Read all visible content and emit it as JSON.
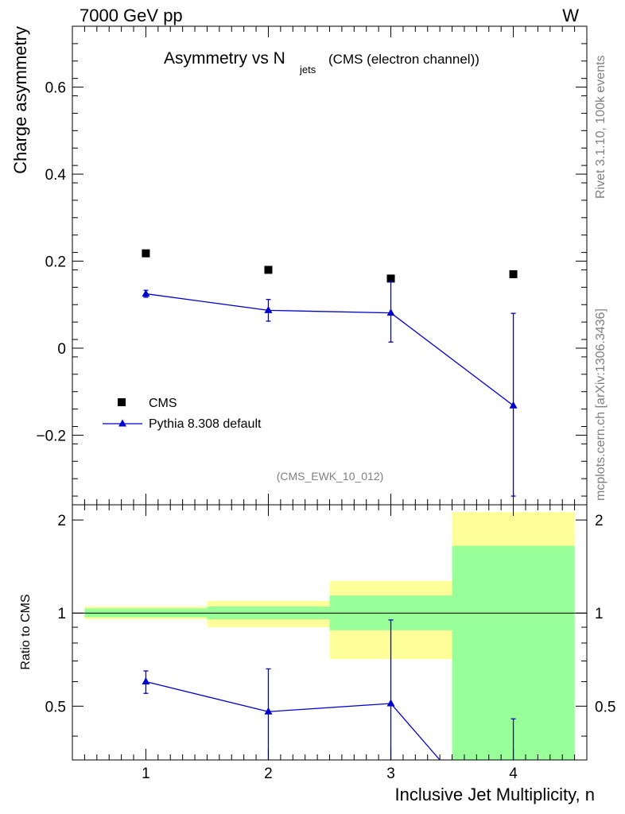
{
  "header": {
    "left": "7000 GeV pp",
    "right": "W"
  },
  "side_labels": {
    "rivet": "Rivet 3.1.10,  100k events",
    "mcplots": "mcplots.cern.ch [arXiv:1306.3436]"
  },
  "chart_data": [
    {
      "type": "scatter",
      "title_main": "Asymmetry vs N",
      "title_sub": "jets",
      "title_suffix": "(CMS (electron channel))",
      "ylabel": "Charge asymmetry",
      "watermark": "(CMS_EWK_10_012)",
      "xlim": [
        0.4,
        4.6
      ],
      "ylim": [
        -0.36,
        0.74
      ],
      "yticks": [
        -0.2,
        0,
        0.2,
        0.4,
        0.6
      ],
      "ytick_labels": [
        "−0.2",
        "0",
        "0.2",
        "0.4",
        "0.6"
      ],
      "legend_position": "bottom-left",
      "series": [
        {
          "name": "CMS",
          "marker": "square",
          "color": "#000000",
          "x": [
            1,
            2,
            3,
            4
          ],
          "y": [
            0.218,
            0.18,
            0.16,
            0.17
          ]
        },
        {
          "name": "Pythia 8.308 default",
          "marker": "triangle",
          "color": "#0000cc",
          "x": [
            1,
            2,
            3,
            4
          ],
          "y": [
            0.125,
            0.087,
            0.081,
            -0.132
          ],
          "yerr_low": [
            0.008,
            0.025,
            0.067,
            0.208
          ],
          "yerr_high": [
            0.008,
            0.025,
            0.072,
            0.212
          ]
        }
      ]
    },
    {
      "type": "scatter",
      "ylabel": "Ratio to CMS",
      "xlabel": "Inclusive Jet Multiplicity, n",
      "xlim": [
        0.4,
        4.6
      ],
      "ylim": [
        0.335,
        2.24
      ],
      "xticks": [
        1,
        2,
        3,
        4
      ],
      "xtick_labels": [
        "1",
        "2",
        "3",
        "4"
      ],
      "yticks": [
        0.5,
        1,
        2
      ],
      "ytick_labels": [
        "0.5",
        "1",
        "2"
      ],
      "reference_line": 1,
      "bands": [
        {
          "x0": 0.5,
          "x1": 1.5,
          "yellow": [
            0.955,
            1.05
          ],
          "green": [
            0.97,
            1.035
          ]
        },
        {
          "x0": 1.5,
          "x1": 2.5,
          "yellow": [
            0.9,
            1.095
          ],
          "green": [
            0.955,
            1.05
          ]
        },
        {
          "x0": 2.5,
          "x1": 3.5,
          "yellow": [
            0.71,
            1.27
          ],
          "green": [
            0.88,
            1.14
          ]
        },
        {
          "x0": 3.5,
          "x1": 4.5,
          "yellow": [
            0.335,
            2.12
          ],
          "green": [
            0.335,
            1.65
          ]
        }
      ],
      "series": [
        {
          "name": "Pythia 8.308 default",
          "color": "#0000cc",
          "x": [
            1,
            2,
            3,
            3.4
          ],
          "y": [
            0.6,
            0.48,
            0.51,
            0.335
          ],
          "err_x": [
            1,
            2,
            3,
            4
          ],
          "err_low": [
            0.55,
            0.335,
            0.335,
            0.335
          ],
          "err_high": [
            0.65,
            0.66,
            0.95,
            0.455
          ]
        }
      ]
    }
  ]
}
